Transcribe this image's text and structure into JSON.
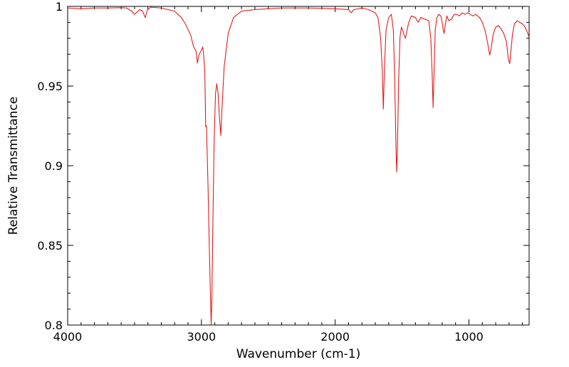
{
  "chart_data": {
    "type": "line",
    "title": "",
    "xlabel": "Wavenumber (cm-1)",
    "ylabel": "Relative Transmittance",
    "xlim": [
      4000,
      550
    ],
    "ylim": [
      0.8,
      1.0
    ],
    "x_reversed": true,
    "grid": false,
    "legend": "none",
    "x_ticks": [
      4000,
      3000,
      2000,
      1000
    ],
    "x_tick_labels": [
      "4000",
      "3000",
      "2000",
      "1000"
    ],
    "y_ticks": [
      0.8,
      0.85,
      0.9,
      0.95,
      1.0
    ],
    "y_tick_labels": [
      "0.8",
      "0.85",
      "0.9",
      "0.95",
      "1"
    ],
    "series": [
      {
        "color": "#e41a1c",
        "points": [
          [
            4000,
            0.999
          ],
          [
            3900,
            0.9985
          ],
          [
            3800,
            0.999
          ],
          [
            3700,
            0.999
          ],
          [
            3600,
            0.9992
          ],
          [
            3560,
            0.999
          ],
          [
            3520,
            0.997
          ],
          [
            3500,
            0.995
          ],
          [
            3480,
            0.9965
          ],
          [
            3460,
            0.998
          ],
          [
            3440,
            0.997
          ],
          [
            3420,
            0.993
          ],
          [
            3405,
            0.9975
          ],
          [
            3380,
            0.9995
          ],
          [
            3300,
            0.999
          ],
          [
            3250,
            0.998
          ],
          [
            3200,
            0.997
          ],
          [
            3150,
            0.993
          ],
          [
            3120,
            0.989
          ],
          [
            3080,
            0.982
          ],
          [
            3060,
            0.975
          ],
          [
            3040,
            0.972
          ],
          [
            3030,
            0.9645
          ],
          [
            3020,
            0.969
          ],
          [
            3010,
            0.971
          ],
          [
            3000,
            0.9725
          ],
          [
            2990,
            0.9745
          ],
          [
            2985,
            0.971
          ],
          [
            2975,
            0.96
          ],
          [
            2968,
            0.9245
          ],
          [
            2962,
            0.925
          ],
          [
            2950,
            0.885
          ],
          [
            2940,
            0.845
          ],
          [
            2930,
            0.81
          ],
          [
            2927,
            0.8005
          ],
          [
            2922,
            0.815
          ],
          [
            2915,
            0.86
          ],
          [
            2905,
            0.915
          ],
          [
            2895,
            0.945
          ],
          [
            2885,
            0.9515
          ],
          [
            2875,
            0.945
          ],
          [
            2865,
            0.93
          ],
          [
            2855,
            0.919
          ],
          [
            2845,
            0.938
          ],
          [
            2830,
            0.962
          ],
          [
            2800,
            0.983
          ],
          [
            2760,
            0.993
          ],
          [
            2700,
            0.997
          ],
          [
            2600,
            0.998
          ],
          [
            2400,
            0.999
          ],
          [
            2200,
            0.999
          ],
          [
            2000,
            0.9985
          ],
          [
            1900,
            0.998
          ],
          [
            1880,
            0.996
          ],
          [
            1860,
            0.998
          ],
          [
            1800,
            0.999
          ],
          [
            1750,
            0.998
          ],
          [
            1700,
            0.996
          ],
          [
            1680,
            0.993
          ],
          [
            1660,
            0.98
          ],
          [
            1648,
            0.96
          ],
          [
            1640,
            0.9355
          ],
          [
            1632,
            0.96
          ],
          [
            1620,
            0.985
          ],
          [
            1600,
            0.993
          ],
          [
            1580,
            0.995
          ],
          [
            1565,
            0.985
          ],
          [
            1555,
            0.955
          ],
          [
            1545,
            0.91
          ],
          [
            1540,
            0.896
          ],
          [
            1535,
            0.91
          ],
          [
            1525,
            0.955
          ],
          [
            1515,
            0.981
          ],
          [
            1505,
            0.987
          ],
          [
            1495,
            0.985
          ],
          [
            1485,
            0.982
          ],
          [
            1475,
            0.98
          ],
          [
            1465,
            0.984
          ],
          [
            1450,
            0.99
          ],
          [
            1430,
            0.994
          ],
          [
            1400,
            0.993
          ],
          [
            1380,
            0.99
          ],
          [
            1360,
            0.993
          ],
          [
            1330,
            0.992
          ],
          [
            1300,
            0.991
          ],
          [
            1285,
            0.98
          ],
          [
            1275,
            0.958
          ],
          [
            1268,
            0.9365
          ],
          [
            1262,
            0.955
          ],
          [
            1252,
            0.985
          ],
          [
            1240,
            0.993
          ],
          [
            1225,
            0.995
          ],
          [
            1210,
            0.994
          ],
          [
            1200,
            0.99
          ],
          [
            1192,
            0.985
          ],
          [
            1185,
            0.983
          ],
          [
            1178,
            0.988
          ],
          [
            1165,
            0.994
          ],
          [
            1150,
            0.991
          ],
          [
            1130,
            0.992
          ],
          [
            1110,
            0.995
          ],
          [
            1090,
            0.995
          ],
          [
            1070,
            0.994
          ],
          [
            1050,
            0.996
          ],
          [
            1030,
            0.995
          ],
          [
            1010,
            0.996
          ],
          [
            990,
            0.995
          ],
          [
            970,
            0.994
          ],
          [
            950,
            0.995
          ],
          [
            920,
            0.993
          ],
          [
            900,
            0.99
          ],
          [
            880,
            0.985
          ],
          [
            860,
            0.977
          ],
          [
            845,
            0.9695
          ],
          [
            835,
            0.973
          ],
          [
            820,
            0.982
          ],
          [
            800,
            0.987
          ],
          [
            780,
            0.988
          ],
          [
            760,
            0.986
          ],
          [
            740,
            0.983
          ],
          [
            720,
            0.978
          ],
          [
            705,
            0.967
          ],
          [
            695,
            0.964
          ],
          [
            688,
            0.97
          ],
          [
            675,
            0.982
          ],
          [
            660,
            0.989
          ],
          [
            640,
            0.991
          ],
          [
            620,
            0.99
          ],
          [
            600,
            0.989
          ],
          [
            580,
            0.987
          ],
          [
            560,
            0.983
          ],
          [
            550,
            0.981
          ]
        ]
      }
    ]
  }
}
